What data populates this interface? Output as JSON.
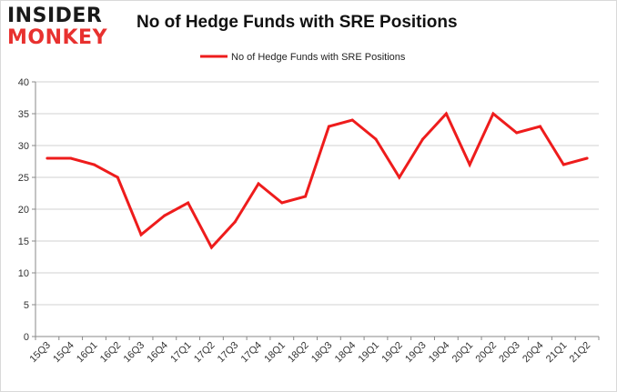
{
  "logo": {
    "line1": "INSIDER",
    "line2": "MONKEY"
  },
  "chart_data": {
    "type": "line",
    "title": "No of Hedge Funds with SRE Positions",
    "xlabel": "",
    "ylabel": "",
    "categories": [
      "15Q3",
      "15Q4",
      "16Q1",
      "16Q2",
      "16Q3",
      "16Q4",
      "17Q1",
      "17Q2",
      "17Q3",
      "17Q4",
      "18Q1",
      "18Q2",
      "18Q3",
      "18Q4",
      "19Q1",
      "19Q2",
      "19Q3",
      "19Q4",
      "20Q1",
      "20Q2",
      "20Q3",
      "20Q4",
      "21Q1",
      "21Q2"
    ],
    "series": [
      {
        "name": "No of Hedge Funds with SRE Positions",
        "values": [
          28,
          28,
          27,
          25,
          16,
          19,
          21,
          14,
          18,
          24,
          21,
          22,
          33,
          34,
          31,
          25,
          31,
          35,
          27,
          35,
          32,
          33,
          27,
          28
        ],
        "color": "#ee1c1c"
      }
    ],
    "ylim": [
      0,
      40
    ],
    "yticks": [
      0,
      5,
      10,
      15,
      20,
      25,
      30,
      35,
      40
    ],
    "grid": "horizontal",
    "legend": "top-center"
  }
}
